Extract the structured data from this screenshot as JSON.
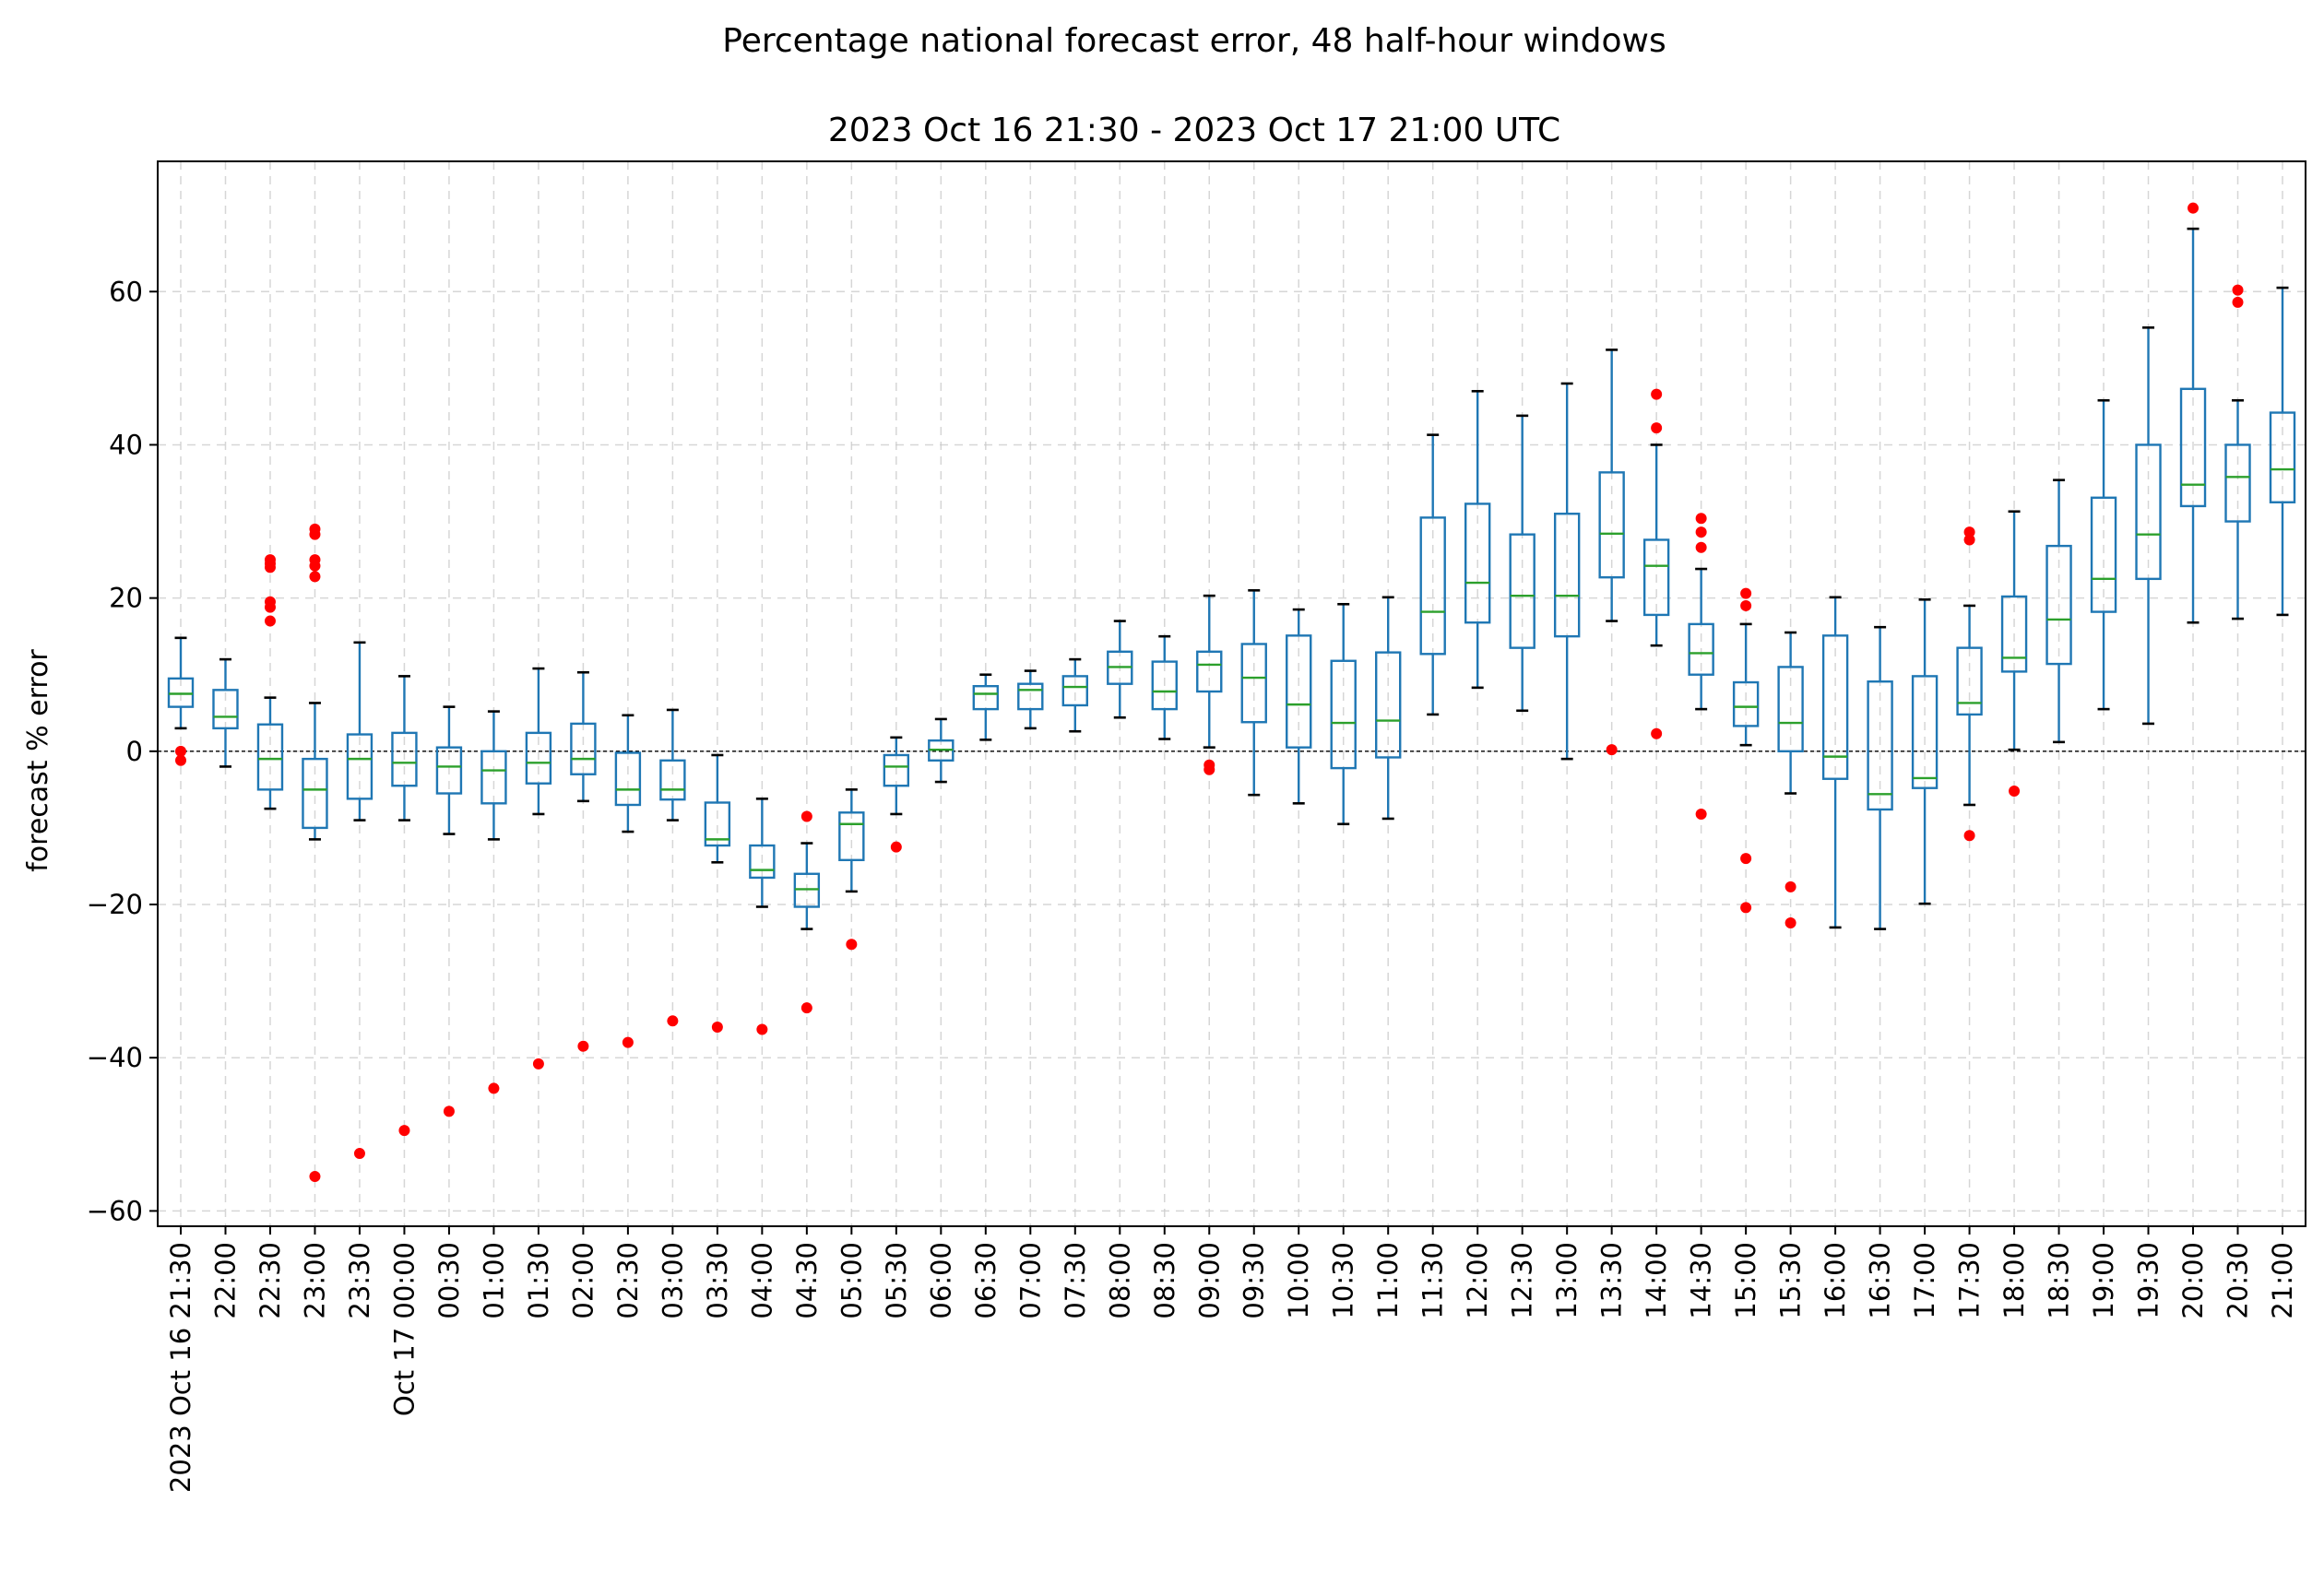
{
  "chart_data": {
    "type": "box",
    "title": "Percentage national forecast error, 48 half-hour windows",
    "subtitle": "2023 Oct 16 21:30 - 2023 Oct 17 21:00 UTC",
    "xlabel": "",
    "ylabel": "forecast % error",
    "ylim": [
      -62,
      77
    ],
    "yticks": [
      -60,
      -40,
      -20,
      0,
      20,
      40,
      60
    ],
    "ytick_labels": [
      "−60",
      "−40",
      "−20",
      "0",
      "20",
      "40",
      "60"
    ],
    "grid": true,
    "reference_line": 0,
    "categories": [
      "2023 Oct 16 21:30",
      "22:00",
      "22:30",
      "23:00",
      "23:30",
      "Oct 17 00:00",
      "00:30",
      "01:00",
      "01:30",
      "02:00",
      "02:30",
      "03:00",
      "03:30",
      "04:00",
      "04:30",
      "05:00",
      "05:30",
      "06:00",
      "06:30",
      "07:00",
      "07:30",
      "08:00",
      "08:30",
      "09:00",
      "09:30",
      "10:00",
      "10:30",
      "11:00",
      "11:30",
      "12:00",
      "12:30",
      "13:00",
      "13:30",
      "14:00",
      "14:30",
      "15:00",
      "15:30",
      "16:00",
      "16:30",
      "17:00",
      "17:30",
      "18:00",
      "18:30",
      "19:00",
      "19:30",
      "20:00",
      "20:30",
      "21:00"
    ],
    "boxes": [
      {
        "min": 3,
        "q1": 5.8,
        "median": 7.5,
        "q3": 9.5,
        "max": 14.8,
        "fliers": [
          0,
          -1.2
        ]
      },
      {
        "min": -2,
        "q1": 3,
        "median": 4.5,
        "q3": 8,
        "max": 12,
        "fliers": []
      },
      {
        "min": -7.5,
        "q1": -5,
        "median": -1,
        "q3": 3.5,
        "max": 7,
        "fliers": [
          17,
          18.8,
          19.5,
          24,
          24.5,
          25
        ]
      },
      {
        "min": -11.5,
        "q1": -10,
        "median": -5,
        "q3": -1,
        "max": 6.3,
        "fliers": [
          -55.5,
          22.8,
          24.2,
          25,
          28.3,
          29
        ]
      },
      {
        "min": -9,
        "q1": -6.2,
        "median": -1,
        "q3": 2.2,
        "max": 14.2,
        "fliers": [
          -52.5
        ]
      },
      {
        "min": -9,
        "q1": -4.5,
        "median": -1.5,
        "q3": 2.4,
        "max": 9.8,
        "fliers": [
          -49.5
        ]
      },
      {
        "min": -10.8,
        "q1": -5.5,
        "median": -2,
        "q3": 0.5,
        "max": 5.8,
        "fliers": [
          -47
        ]
      },
      {
        "min": -11.5,
        "q1": -6.8,
        "median": -2.5,
        "q3": 0,
        "max": 5.2,
        "fliers": [
          -44
        ]
      },
      {
        "min": -8.2,
        "q1": -4.2,
        "median": -1.5,
        "q3": 2.4,
        "max": 10.8,
        "fliers": [
          -40.8
        ]
      },
      {
        "min": -6.5,
        "q1": -3,
        "median": -1,
        "q3": 3.6,
        "max": 10.3,
        "fliers": [
          -38.5
        ]
      },
      {
        "min": -10.5,
        "q1": -7,
        "median": -5,
        "q3": -0.2,
        "max": 4.7,
        "fliers": [
          -38
        ]
      },
      {
        "min": -9,
        "q1": -6.3,
        "median": -5,
        "q3": -1.2,
        "max": 5.4,
        "fliers": [
          -35.2
        ]
      },
      {
        "min": -14.5,
        "q1": -12.3,
        "median": -11.5,
        "q3": -6.7,
        "max": -0.5,
        "fliers": [
          -36
        ]
      },
      {
        "min": -20.3,
        "q1": -16.5,
        "median": -15.5,
        "q3": -12.3,
        "max": -6.2,
        "fliers": [
          -36.3
        ]
      },
      {
        "min": -23.2,
        "q1": -20.3,
        "median": -18,
        "q3": -16,
        "max": -12,
        "fliers": [
          -8.5,
          -33.5
        ]
      },
      {
        "min": -18.3,
        "q1": -14.2,
        "median": -9.5,
        "q3": -8,
        "max": -5,
        "fliers": [
          -25.2
        ]
      },
      {
        "min": -8.2,
        "q1": -4.5,
        "median": -2,
        "q3": -0.5,
        "max": 1.8,
        "fliers": [
          -12.5
        ]
      },
      {
        "min": -4,
        "q1": -1.2,
        "median": 0.2,
        "q3": 1.4,
        "max": 4.2,
        "fliers": []
      },
      {
        "min": 1.5,
        "q1": 5.5,
        "median": 7.5,
        "q3": 8.5,
        "max": 10,
        "fliers": []
      },
      {
        "min": 3,
        "q1": 5.5,
        "median": 8,
        "q3": 8.8,
        "max": 10.5,
        "fliers": []
      },
      {
        "min": 2.6,
        "q1": 6,
        "median": 8.4,
        "q3": 9.8,
        "max": 12,
        "fliers": []
      },
      {
        "min": 4.4,
        "q1": 8.8,
        "median": 11,
        "q3": 13,
        "max": 17,
        "fliers": []
      },
      {
        "min": 1.6,
        "q1": 5.5,
        "median": 7.8,
        "q3": 11.7,
        "max": 15,
        "fliers": []
      },
      {
        "min": 0.5,
        "q1": 7.8,
        "median": 11.3,
        "q3": 13,
        "max": 20.3,
        "fliers": [
          -1.8,
          -2.4
        ]
      },
      {
        "min": -5.7,
        "q1": 3.8,
        "median": 9.6,
        "q3": 14,
        "max": 21,
        "fliers": []
      },
      {
        "min": -6.8,
        "q1": 0.5,
        "median": 6.1,
        "q3": 15.1,
        "max": 18.5,
        "fliers": []
      },
      {
        "min": -9.5,
        "q1": -2.2,
        "median": 3.7,
        "q3": 11.8,
        "max": 19.2,
        "fliers": []
      },
      {
        "min": -8.8,
        "q1": -0.8,
        "median": 4,
        "q3": 12.9,
        "max": 20.1,
        "fliers": []
      },
      {
        "min": 4.8,
        "q1": 12.7,
        "median": 18.2,
        "q3": 30.5,
        "max": 41.3,
        "fliers": []
      },
      {
        "min": 8.3,
        "q1": 16.8,
        "median": 22,
        "q3": 32.3,
        "max": 47,
        "fliers": []
      },
      {
        "min": 5.3,
        "q1": 13.5,
        "median": 20.3,
        "q3": 28.3,
        "max": 43.8,
        "fliers": []
      },
      {
        "min": -1,
        "q1": 15,
        "median": 20.3,
        "q3": 31,
        "max": 48,
        "fliers": []
      },
      {
        "min": 17,
        "q1": 22.7,
        "median": 28.4,
        "q3": 36.4,
        "max": 52.4,
        "fliers": [
          0.2
        ]
      },
      {
        "min": 13.8,
        "q1": 17.8,
        "median": 24.2,
        "q3": 27.6,
        "max": 40,
        "fliers": [
          46.6,
          42.2,
          2.3
        ]
      },
      {
        "min": 5.5,
        "q1": 10,
        "median": 12.8,
        "q3": 16.6,
        "max": 23.8,
        "fliers": [
          30.4,
          28.6,
          26.6,
          -8.2
        ]
      },
      {
        "min": 0.8,
        "q1": 3.3,
        "median": 5.8,
        "q3": 9,
        "max": 16.6,
        "fliers": [
          20.6,
          19,
          -14,
          -20.4
        ]
      },
      {
        "min": -5.5,
        "q1": 0,
        "median": 3.7,
        "q3": 11,
        "max": 15.5,
        "fliers": [
          -17.7,
          -22.4
        ]
      },
      {
        "min": -23,
        "q1": -3.6,
        "median": -0.7,
        "q3": 15.1,
        "max": 20.1,
        "fliers": []
      },
      {
        "min": -23.2,
        "q1": -7.6,
        "median": -5.6,
        "q3": 9.1,
        "max": 16.2,
        "fliers": []
      },
      {
        "min": -19.9,
        "q1": -4.8,
        "median": -3.5,
        "q3": 9.8,
        "max": 19.8,
        "fliers": []
      },
      {
        "min": -7,
        "q1": 4.8,
        "median": 6.3,
        "q3": 13.5,
        "max": 19,
        "fliers": [
          28.6,
          27.6,
          -11
        ]
      },
      {
        "min": 0.2,
        "q1": 10.4,
        "median": 12.2,
        "q3": 20.2,
        "max": 31.3,
        "fliers": [
          -5.2
        ]
      },
      {
        "min": 1.2,
        "q1": 11.4,
        "median": 17.2,
        "q3": 26.8,
        "max": 35.4,
        "fliers": []
      },
      {
        "min": 5.5,
        "q1": 18.2,
        "median": 22.5,
        "q3": 33.1,
        "max": 45.8,
        "fliers": []
      },
      {
        "min": 3.6,
        "q1": 22.5,
        "median": 28.3,
        "q3": 40,
        "max": 55.3,
        "fliers": []
      },
      {
        "min": 16.8,
        "q1": 32,
        "median": 34.8,
        "q3": 47.3,
        "max": 68.2,
        "fliers": [
          70.9
        ]
      },
      {
        "min": 17.3,
        "q1": 30,
        "median": 35.8,
        "q3": 40,
        "max": 45.8,
        "fliers": [
          60.2,
          58.6
        ]
      },
      {
        "min": 17.8,
        "q1": 32.5,
        "median": 36.8,
        "q3": 44.2,
        "max": 60.5,
        "fliers": []
      }
    ]
  }
}
